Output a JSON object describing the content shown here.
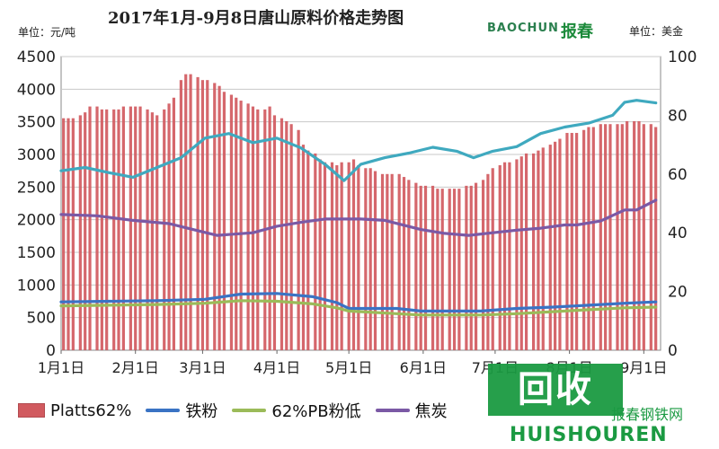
{
  "chart_data": {
    "type": "bar",
    "title": "2017年1月-9月8日唐山原料价格走势图",
    "left_unit_label": "单位：元/吨",
    "right_unit_label": "单位：美金",
    "brand": "BAOCHUN",
    "brand_cn": "报春",
    "y_left": {
      "min": 0,
      "max": 4500,
      "ticks": [
        0,
        500,
        1000,
        1500,
        2000,
        2500,
        3000,
        3500,
        4000,
        4500
      ]
    },
    "y_right": {
      "min": 0,
      "max": 100,
      "ticks": [
        0,
        20,
        40,
        60,
        80,
        100
      ]
    },
    "x_labels": [
      "1月1日",
      "2月1日",
      "3月1日",
      "4月1日",
      "5月1日",
      "6月1日",
      "7月1日",
      "8月1日",
      "9月1日"
    ],
    "x_label_days": [
      0,
      31,
      59,
      90,
      120,
      151,
      181,
      212,
      243
    ],
    "x_range_days": [
      0,
      250
    ],
    "series": [
      {
        "name": "Platts62%",
        "type": "bar",
        "axis": "right",
        "color": "#d15a5f",
        "days": [
          1,
          3,
          5,
          8,
          10,
          12,
          15,
          17,
          19,
          22,
          24,
          26,
          29,
          31,
          33,
          36,
          38,
          40,
          43,
          45,
          47,
          50,
          52,
          54,
          57,
          59,
          61,
          64,
          66,
          68,
          71,
          73,
          75,
          78,
          80,
          82,
          85,
          87,
          89,
          92,
          94,
          96,
          99,
          101,
          103,
          106,
          108,
          110,
          113,
          115,
          117,
          120,
          122,
          124,
          127,
          129,
          131,
          134,
          136,
          138,
          141,
          143,
          145,
          148,
          150,
          152,
          155,
          157,
          159,
          162,
          164,
          166,
          169,
          171,
          173,
          176,
          178,
          180,
          183,
          185,
          187,
          190,
          192,
          194,
          197,
          199,
          201,
          204,
          206,
          208,
          211,
          213,
          215,
          218,
          220,
          222,
          225,
          227,
          229,
          232,
          234,
          236,
          239,
          241,
          243,
          246,
          248
        ],
        "values": [
          79,
          79,
          79,
          80,
          81,
          83,
          83,
          82,
          82,
          82,
          82,
          83,
          83,
          83,
          83,
          82,
          81,
          80,
          82,
          84,
          86,
          92,
          94,
          94,
          93,
          92,
          92,
          91,
          90,
          88,
          87,
          86,
          85,
          84,
          83,
          82,
          82,
          83,
          80,
          79,
          78,
          77,
          75,
          70,
          68,
          67,
          65,
          64,
          64,
          63,
          64,
          64,
          65,
          63,
          62,
          62,
          61,
          60,
          60,
          60,
          60,
          59,
          58,
          57,
          56,
          56,
          56,
          55,
          55,
          55,
          55,
          55,
          56,
          56,
          57,
          58,
          60,
          62,
          63,
          64,
          64,
          65,
          66,
          67,
          67,
          68,
          69,
          70,
          71,
          72,
          74,
          74,
          74,
          75,
          76,
          76,
          77,
          77,
          77,
          77,
          77,
          78,
          78,
          78,
          77,
          77,
          76
        ]
      },
      {
        "name": "铁粉",
        "type": "line",
        "axis": "left",
        "color": "#3a73c4",
        "x": [
          0,
          20,
          40,
          60,
          75,
          90,
          105,
          115,
          120,
          140,
          150,
          160,
          175,
          190,
          205,
          220,
          235,
          248
        ],
        "values": [
          740,
          750,
          760,
          780,
          860,
          870,
          820,
          730,
          640,
          640,
          600,
          600,
          600,
          640,
          660,
          690,
          720,
          740
        ]
      },
      {
        "name": "62%PB粉低",
        "type": "line",
        "axis": "left",
        "color": "#9bbb59",
        "x": [
          0,
          20,
          40,
          60,
          75,
          90,
          105,
          115,
          120,
          140,
          150,
          160,
          175,
          190,
          205,
          220,
          235,
          248
        ],
        "values": [
          680,
          690,
          700,
          720,
          760,
          750,
          710,
          650,
          600,
          560,
          540,
          540,
          540,
          560,
          590,
          620,
          650,
          660
        ]
      },
      {
        "name": "焦炭",
        "type": "line",
        "axis": "left",
        "color": "#7b59a5",
        "x": [
          0,
          15,
          30,
          45,
          55,
          65,
          80,
          90,
          100,
          110,
          125,
          135,
          150,
          160,
          170,
          180,
          190,
          200,
          210,
          215,
          225,
          235,
          240,
          248
        ],
        "values": [
          2080,
          2060,
          1990,
          1940,
          1850,
          1760,
          1800,
          1900,
          1960,
          2010,
          2010,
          1990,
          1850,
          1790,
          1760,
          1800,
          1840,
          1870,
          1920,
          1920,
          1980,
          2150,
          2150,
          2300
        ]
      },
      {
        "name": "",
        "type": "line",
        "axis": "left",
        "color": "#3fa9bf",
        "x": [
          0,
          10,
          20,
          30,
          40,
          50,
          60,
          70,
          80,
          90,
          100,
          110,
          118,
          125,
          135,
          145,
          155,
          165,
          172,
          180,
          190,
          200,
          210,
          220,
          230,
          235,
          240,
          248
        ],
        "values": [
          2750,
          2800,
          2720,
          2650,
          2800,
          2950,
          3250,
          3320,
          3180,
          3250,
          3100,
          2850,
          2600,
          2850,
          2950,
          3020,
          3110,
          3050,
          2950,
          3050,
          3120,
          3320,
          3420,
          3480,
          3600,
          3800,
          3830,
          3790
        ]
      }
    ],
    "legend": [
      "Platts62%",
      "铁粉",
      "62%PB粉低",
      "焦炭"
    ],
    "legend_position": "bottom",
    "grid": "horizontal"
  },
  "watermark": {
    "big": "回收",
    "small": "HUISHOUREN",
    "site": "报春钢铁网"
  }
}
